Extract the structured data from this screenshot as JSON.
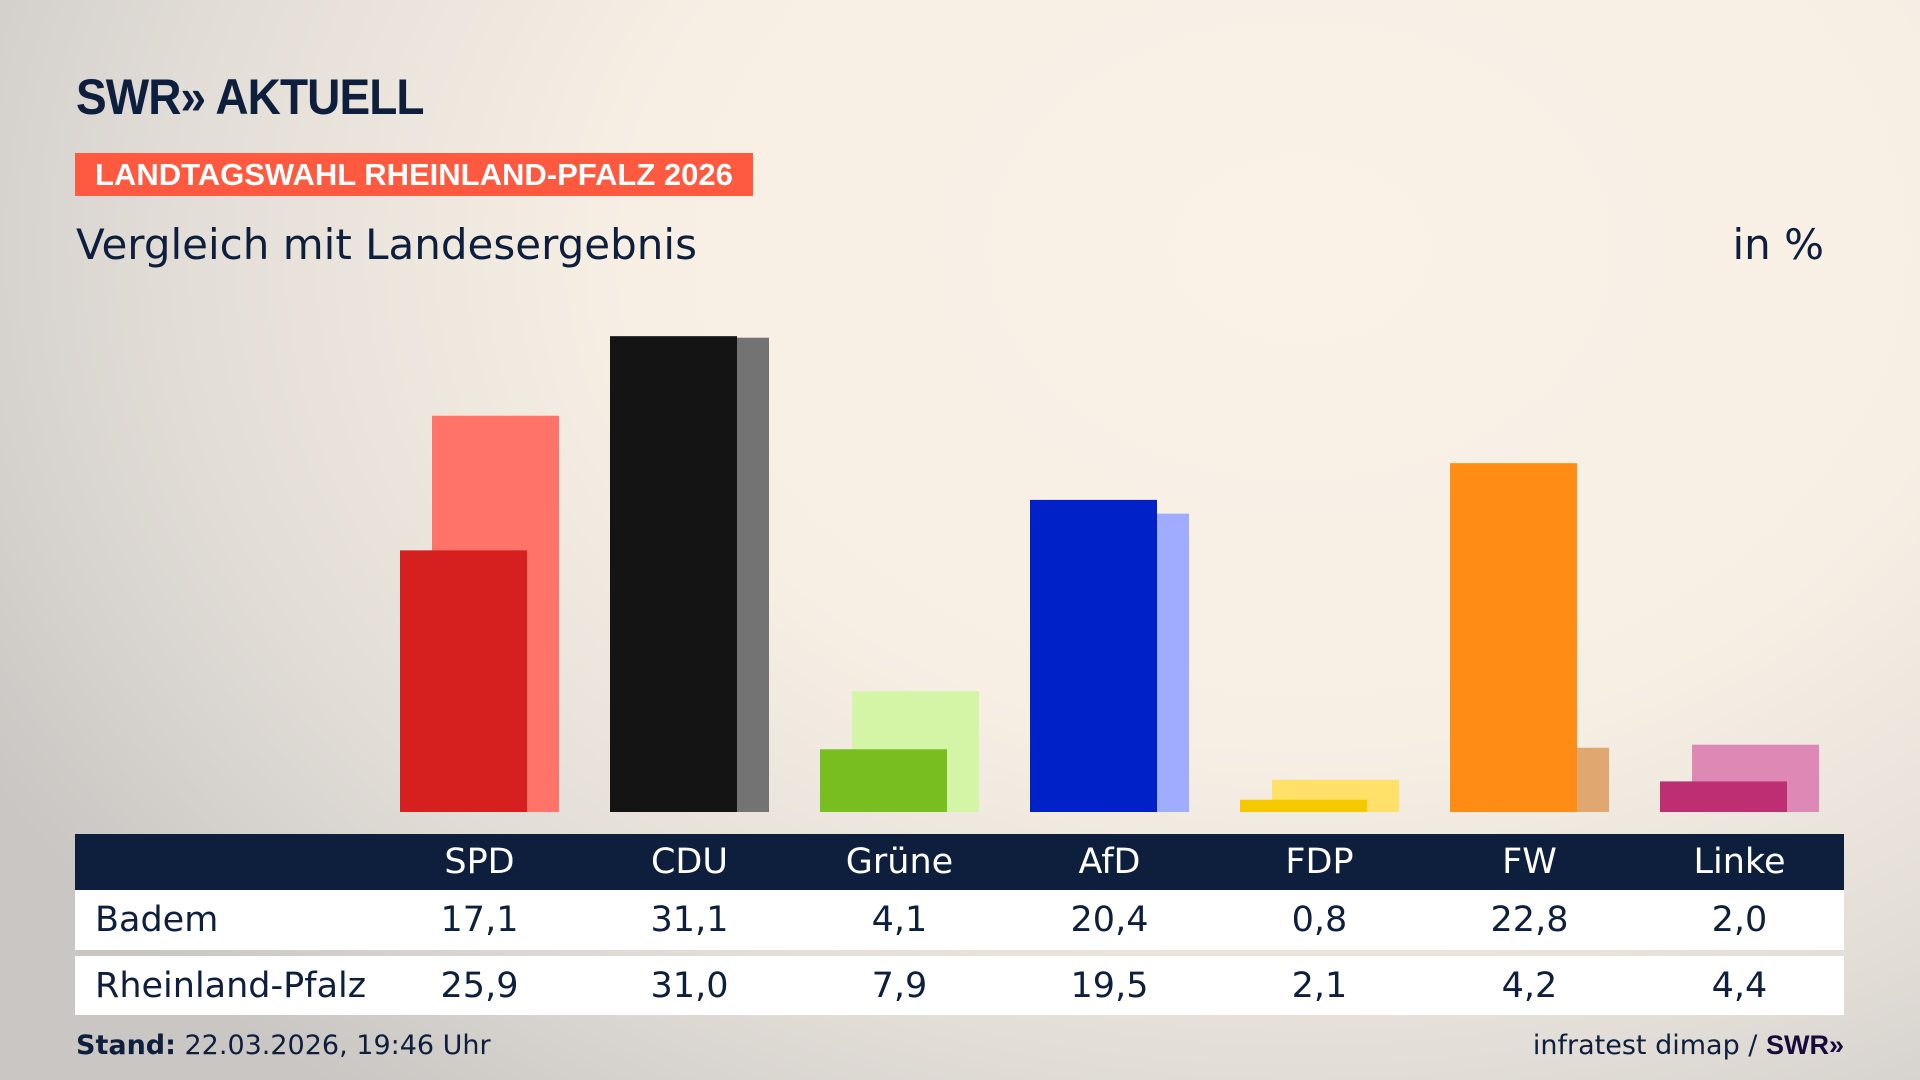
{
  "header": {
    "logo": "SWR» AKTUELL",
    "banner": "LANDTAGSWAHL RHEINLAND-PFALZ 2026",
    "subtitle": "Vergleich mit Landesergebnis",
    "unit": "in %"
  },
  "chart_data": {
    "type": "bar",
    "title": "Vergleich mit Landesergebnis",
    "ylabel": "in %",
    "ylim": [
      0,
      31.1
    ],
    "categories": [
      "SPD",
      "CDU",
      "Grüne",
      "AfD",
      "FDP",
      "FW",
      "Linke"
    ],
    "series": [
      {
        "name": "Badem",
        "values": [
          17.1,
          31.1,
          4.1,
          20.4,
          0.8,
          22.8,
          2.0
        ],
        "labels": [
          "17,1",
          "31,1",
          "4,1",
          "20,4",
          "0,8",
          "22,8",
          "2,0"
        ],
        "colors": [
          "#d61f1f",
          "#141414",
          "#78be1e",
          "#0021c8",
          "#f5c800",
          "#ff8c14",
          "#be2e73"
        ]
      },
      {
        "name": "Rheinland-Pfalz",
        "values": [
          25.9,
          31.0,
          7.9,
          19.5,
          2.1,
          4.2,
          4.4
        ],
        "labels": [
          "25,9",
          "31,0",
          "7,9",
          "19,5",
          "2,1",
          "4,2",
          "4,4"
        ],
        "colors": [
          "#ff7369",
          "#737373",
          "#d5f5a6",
          "#a0acff",
          "#ffe169",
          "#e0a870",
          "#de88b6"
        ]
      }
    ]
  },
  "footer": {
    "stand_label": "Stand:",
    "stand_value": " 22.03.2026, 19:46 Uhr",
    "source": "infratest dimap / ",
    "source_logo": "SWR»"
  }
}
